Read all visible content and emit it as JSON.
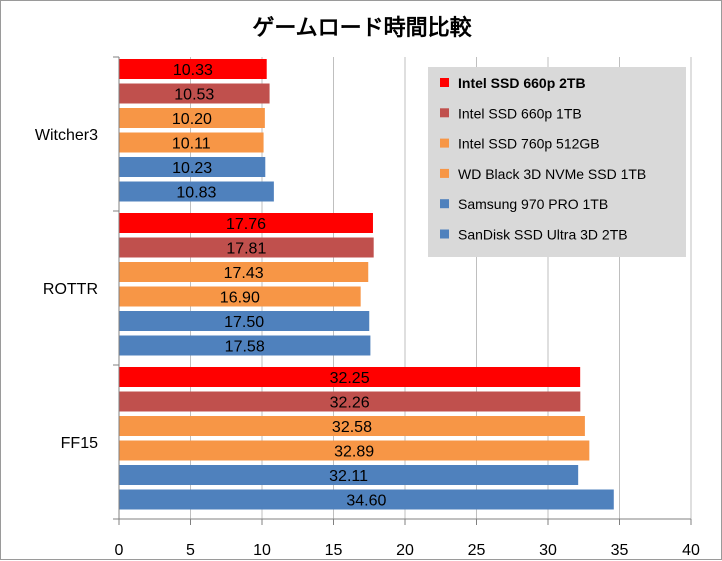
{
  "chart_data": {
    "type": "bar",
    "orientation": "horizontal",
    "title": "ゲームロード時間比較",
    "xlabel": "",
    "ylabel": "",
    "xlim": [
      0,
      40
    ],
    "xticks": [
      0,
      5,
      10,
      15,
      20,
      25,
      30,
      35,
      40
    ],
    "grid": "vertical",
    "legend_position": "top-right",
    "categories": [
      "Witcher3",
      "ROTTR",
      "FF15"
    ],
    "series": [
      {
        "name": "Intel SSD 660p 2TB",
        "color": "#ff0000",
        "bold": true,
        "values": [
          10.33,
          17.76,
          32.25
        ],
        "labels": [
          "10.33",
          "17.76",
          "32.25"
        ]
      },
      {
        "name": "Intel SSD 660p 1TB",
        "color": "#c0504d",
        "bold": false,
        "values": [
          10.53,
          17.81,
          32.26
        ],
        "labels": [
          "10.53",
          "17.81",
          "32.26"
        ]
      },
      {
        "name": "Intel SSD 760p 512GB",
        "color": "#f79646",
        "bold": false,
        "values": [
          10.2,
          17.43,
          32.58
        ],
        "labels": [
          "10.20",
          "17.43",
          "32.58"
        ]
      },
      {
        "name": "WD Black 3D NVMe SSD 1TB",
        "color": "#f79646",
        "bold": false,
        "values": [
          10.11,
          16.9,
          32.89
        ],
        "labels": [
          "10.11",
          "16.90",
          "32.89"
        ]
      },
      {
        "name": "Samsung 970 PRO 1TB",
        "color": "#4f81bd",
        "bold": false,
        "values": [
          10.23,
          17.5,
          32.11
        ],
        "labels": [
          "10.23",
          "17.50",
          "32.11"
        ]
      },
      {
        "name": "SanDisk SSD Ultra 3D 2TB",
        "color": "#4f81bd",
        "bold": false,
        "values": [
          10.83,
          17.58,
          34.6
        ],
        "labels": [
          "10.83",
          "17.58",
          "34.60"
        ]
      }
    ],
    "colors": {
      "gridline": "#bfbfbf",
      "axis": "#808080",
      "legend_background": "#d9d9d9"
    }
  }
}
